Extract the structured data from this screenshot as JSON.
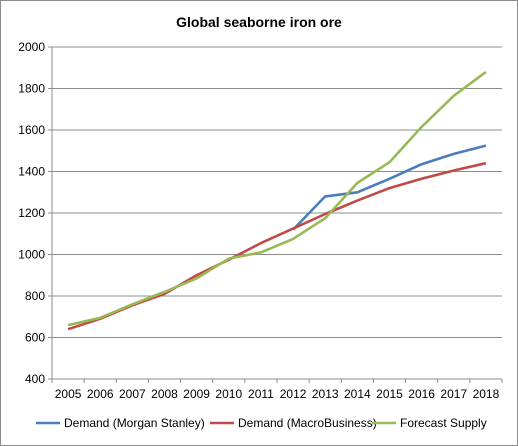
{
  "chart_data": {
    "type": "line",
    "title": "Global seaborne iron ore",
    "xlabel": "",
    "ylabel": "",
    "x": [
      "2005",
      "2006",
      "2007",
      "2008",
      "2009",
      "2010",
      "2011",
      "2012",
      "2013",
      "2014",
      "2015",
      "2016",
      "2017",
      "2018"
    ],
    "ylim": [
      400,
      2000
    ],
    "yticks": [
      400,
      600,
      800,
      1000,
      1200,
      1400,
      1600,
      1800,
      2000
    ],
    "grid": "horizontal",
    "legend": "bottom",
    "series": [
      {
        "name": "Demand (Morgan Stanley)",
        "color": "#4a7ebb",
        "values": [
          null,
          null,
          null,
          null,
          null,
          null,
          null,
          1120,
          1280,
          1300,
          1365,
          1435,
          1485,
          1525
        ]
      },
      {
        "name": "Demand (MacroBusiness)",
        "color": "#be4b48",
        "values": [
          640,
          690,
          755,
          810,
          900,
          975,
          1055,
          1125,
          1195,
          1260,
          1320,
          1365,
          1405,
          1440
        ]
      },
      {
        "name": "Forecast Supply",
        "color": "#98b954",
        "values": [
          660,
          695,
          760,
          820,
          885,
          980,
          1010,
          1075,
          1175,
          1345,
          1445,
          1615,
          1765,
          1880
        ]
      }
    ]
  }
}
